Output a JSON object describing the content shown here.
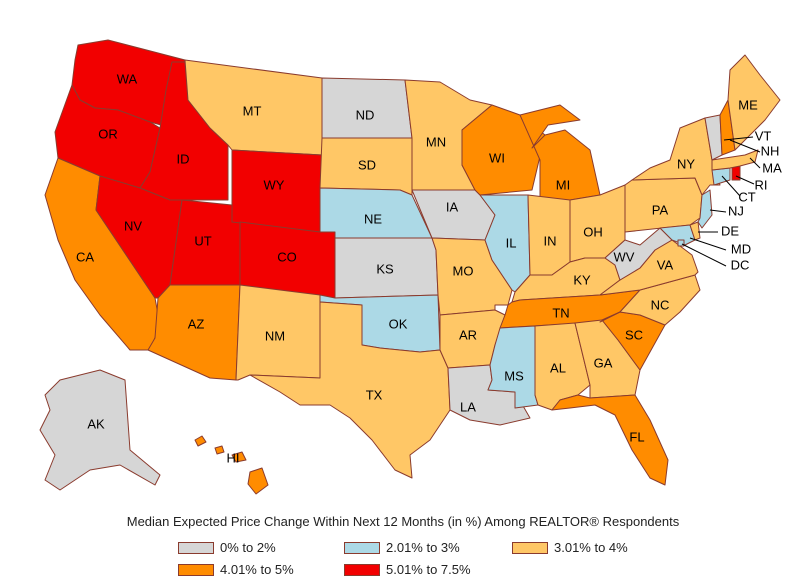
{
  "caption": "Median Expected Price Change Within Next 12 Months (in %) Among REALTOR® Respondents",
  "colors": {
    "gray": "#d6d6d6",
    "blue": "#acd9e6",
    "yellow": "#ffc766",
    "orange": "#ff8c00",
    "red": "#f20000",
    "border": "#8a3b2e"
  },
  "legend": [
    {
      "label": "0% to 2%",
      "color": "#d6d6d6"
    },
    {
      "label": "2.01% to 3%",
      "color": "#acd9e6"
    },
    {
      "label": "3.01% to 4%",
      "color": "#ffc766"
    },
    {
      "label": "4.01% to 5%",
      "color": "#ff8c00"
    },
    {
      "label": "5.01% to 7.5%",
      "color": "#f20000"
    }
  ],
  "states": [
    {
      "abbr": "WA",
      "category": "5.01% to 7.5%"
    },
    {
      "abbr": "OR",
      "category": "5.01% to 7.5%"
    },
    {
      "abbr": "ID",
      "category": "5.01% to 7.5%"
    },
    {
      "abbr": "NV",
      "category": "5.01% to 7.5%"
    },
    {
      "abbr": "UT",
      "category": "5.01% to 7.5%"
    },
    {
      "abbr": "WY",
      "category": "5.01% to 7.5%"
    },
    {
      "abbr": "CO",
      "category": "5.01% to 7.5%"
    },
    {
      "abbr": "RI",
      "category": "5.01% to 7.5%"
    },
    {
      "abbr": "CA",
      "category": "4.01% to 5%"
    },
    {
      "abbr": "AZ",
      "category": "4.01% to 5%"
    },
    {
      "abbr": "WI",
      "category": "4.01% to 5%"
    },
    {
      "abbr": "MI",
      "category": "4.01% to 5%"
    },
    {
      "abbr": "TN",
      "category": "4.01% to 5%"
    },
    {
      "abbr": "SC",
      "category": "4.01% to 5%"
    },
    {
      "abbr": "FL",
      "category": "4.01% to 5%"
    },
    {
      "abbr": "HI",
      "category": "4.01% to 5%"
    },
    {
      "abbr": "NH",
      "category": "4.01% to 5%"
    },
    {
      "abbr": "MT",
      "category": "3.01% to 4%"
    },
    {
      "abbr": "SD",
      "category": "3.01% to 4%"
    },
    {
      "abbr": "MN",
      "category": "3.01% to 4%"
    },
    {
      "abbr": "NM",
      "category": "3.01% to 4%"
    },
    {
      "abbr": "TX",
      "category": "3.01% to 4%"
    },
    {
      "abbr": "MO",
      "category": "3.01% to 4%"
    },
    {
      "abbr": "AR",
      "category": "3.01% to 4%"
    },
    {
      "abbr": "IN",
      "category": "3.01% to 4%"
    },
    {
      "abbr": "OH",
      "category": "3.01% to 4%"
    },
    {
      "abbr": "KY",
      "category": "3.01% to 4%"
    },
    {
      "abbr": "AL",
      "category": "3.01% to 4%"
    },
    {
      "abbr": "GA",
      "category": "3.01% to 4%"
    },
    {
      "abbr": "NC",
      "category": "3.01% to 4%"
    },
    {
      "abbr": "VA",
      "category": "3.01% to 4%"
    },
    {
      "abbr": "PA",
      "category": "3.01% to 4%"
    },
    {
      "abbr": "NY",
      "category": "3.01% to 4%"
    },
    {
      "abbr": "ME",
      "category": "3.01% to 4%"
    },
    {
      "abbr": "MA",
      "category": "3.01% to 4%"
    },
    {
      "abbr": "DE",
      "category": "3.01% to 4%"
    },
    {
      "abbr": "NE",
      "category": "2.01% to 3%"
    },
    {
      "abbr": "OK",
      "category": "2.01% to 3%"
    },
    {
      "abbr": "IL",
      "category": "2.01% to 3%"
    },
    {
      "abbr": "MS",
      "category": "2.01% to 3%"
    },
    {
      "abbr": "NJ",
      "category": "2.01% to 3%"
    },
    {
      "abbr": "CT",
      "category": "2.01% to 3%"
    },
    {
      "abbr": "MD",
      "category": "2.01% to 3%"
    },
    {
      "abbr": "DC",
      "category": "2.01% to 3%"
    },
    {
      "abbr": "ND",
      "category": "0% to 2%"
    },
    {
      "abbr": "KS",
      "category": "0% to 2%"
    },
    {
      "abbr": "IA",
      "category": "0% to 2%"
    },
    {
      "abbr": "LA",
      "category": "0% to 2%"
    },
    {
      "abbr": "WV",
      "category": "0% to 2%"
    },
    {
      "abbr": "AK",
      "category": "0% to 2%"
    },
    {
      "abbr": "VT",
      "category": "0% to 2%"
    }
  ]
}
